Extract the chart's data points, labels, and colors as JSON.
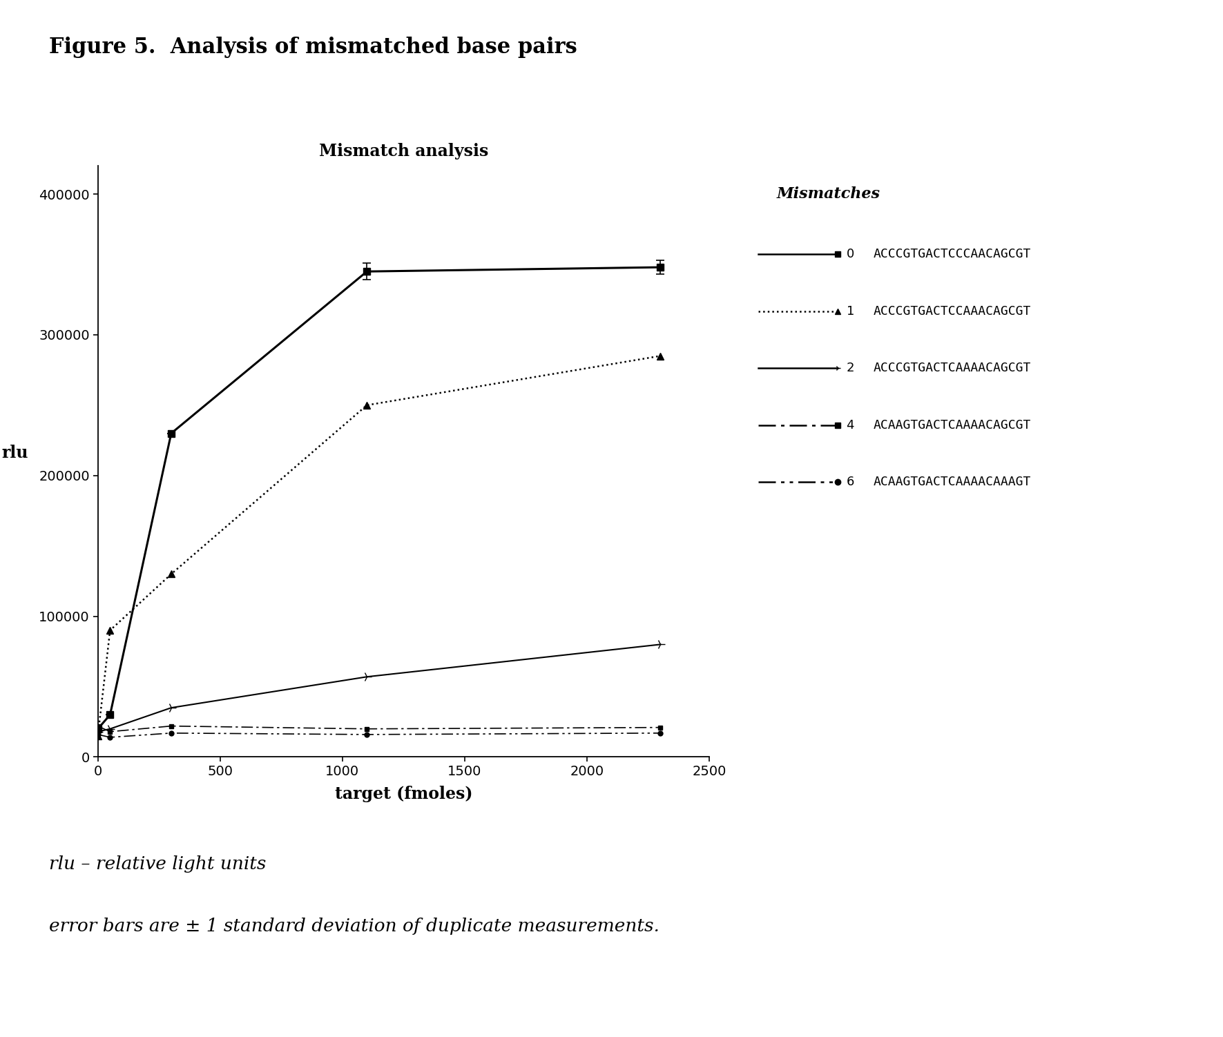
{
  "title": "Mismatch analysis",
  "figure_title": "Figure 5.  Analysis of mismatched base pairs",
  "xlabel": "target (fmoles)",
  "ylabel": "rlu",
  "xlim": [
    0,
    2500
  ],
  "ylim": [
    0,
    420000
  ],
  "xticks": [
    0,
    500,
    1000,
    1500,
    2000,
    2500
  ],
  "yticks": [
    0,
    100000,
    200000,
    300000,
    400000
  ],
  "legend_title": "Mismatches",
  "footnote1": "rlu – relative light units",
  "footnote2": "error bars are ± 1 standard deviation of duplicate measurements.",
  "series": [
    {
      "label_num": "0",
      "label_seq": "ACCCGTGACTCCCAACAGCGT",
      "x": [
        0,
        50,
        300,
        1100,
        2300
      ],
      "y": [
        20000,
        30000,
        230000,
        345000,
        348000
      ],
      "yerr": [
        0,
        0,
        0,
        6000,
        5000
      ],
      "linestyle": "solid",
      "marker": "s",
      "markersize": 7,
      "linewidth": 2.2,
      "dashes": null
    },
    {
      "label_num": "1",
      "label_seq": "ACCCGTGACTCCAAACAGCGT",
      "x": [
        0,
        50,
        300,
        1100,
        2300
      ],
      "y": [
        15000,
        90000,
        130000,
        250000,
        285000
      ],
      "yerr": [
        0,
        0,
        0,
        0,
        0
      ],
      "linestyle": "dotted",
      "marker": "^",
      "markersize": 7,
      "linewidth": 1.8,
      "dashes": null
    },
    {
      "label_num": "2",
      "label_seq": "ACCCGTGACTCAAAACAGCGT",
      "x": [
        0,
        50,
        300,
        1100,
        2300
      ],
      "y": [
        18000,
        20000,
        35000,
        57000,
        80000
      ],
      "yerr": [
        0,
        0,
        0,
        0,
        0
      ],
      "linestyle": "solid",
      "marker": "4",
      "markersize": 10,
      "linewidth": 1.5,
      "dashes": null
    },
    {
      "label_num": "4",
      "label_seq": "ACAAGTGACTCAAAACAGCGT",
      "x": [
        0,
        50,
        300,
        1100,
        2300
      ],
      "y": [
        22000,
        18000,
        22000,
        20000,
        21000
      ],
      "yerr": [
        0,
        0,
        0,
        0,
        0
      ],
      "linestyle": "solid",
      "marker": "s",
      "markersize": 5,
      "linewidth": 1.2,
      "dashes": [
        10,
        3,
        2,
        3
      ]
    },
    {
      "label_num": "6",
      "label_seq": "ACAAGTGACTCAAAACAAAGT",
      "x": [
        0,
        50,
        300,
        1100,
        2300
      ],
      "y": [
        16000,
        14000,
        17000,
        16000,
        17000
      ],
      "yerr": [
        0,
        0,
        0,
        0,
        0
      ],
      "linestyle": "solid",
      "marker": "o",
      "markersize": 5,
      "linewidth": 1.2,
      "dashes": [
        10,
        3,
        2,
        3,
        2,
        3
      ]
    }
  ],
  "legend_items": [
    {
      "num": "0",
      "seq": "ACCCGTGACTCCCAACAGCGT",
      "linestyle": "solid",
      "marker": "s",
      "dashes": null
    },
    {
      "num": "1",
      "seq": "ACCCGTGACTCCAAACAGCGT",
      "linestyle": "dotted",
      "marker": "^",
      "dashes": null
    },
    {
      "num": "2",
      "seq": "ACCCGTGACTCAAAACAGCGT",
      "linestyle": "solid",
      "marker": "4",
      "dashes": null
    },
    {
      "num": "4",
      "seq": "ACAAGTGACTCAAAACAGCGT",
      "linestyle": "solid",
      "marker": "s",
      "dashes": [
        10,
        3,
        2,
        3
      ]
    },
    {
      "num": "6",
      "seq": "ACAAGTGACTCAAAACAAAGT",
      "linestyle": "solid",
      "marker": "o",
      "dashes": [
        10,
        3,
        2,
        3,
        2,
        3
      ]
    }
  ]
}
